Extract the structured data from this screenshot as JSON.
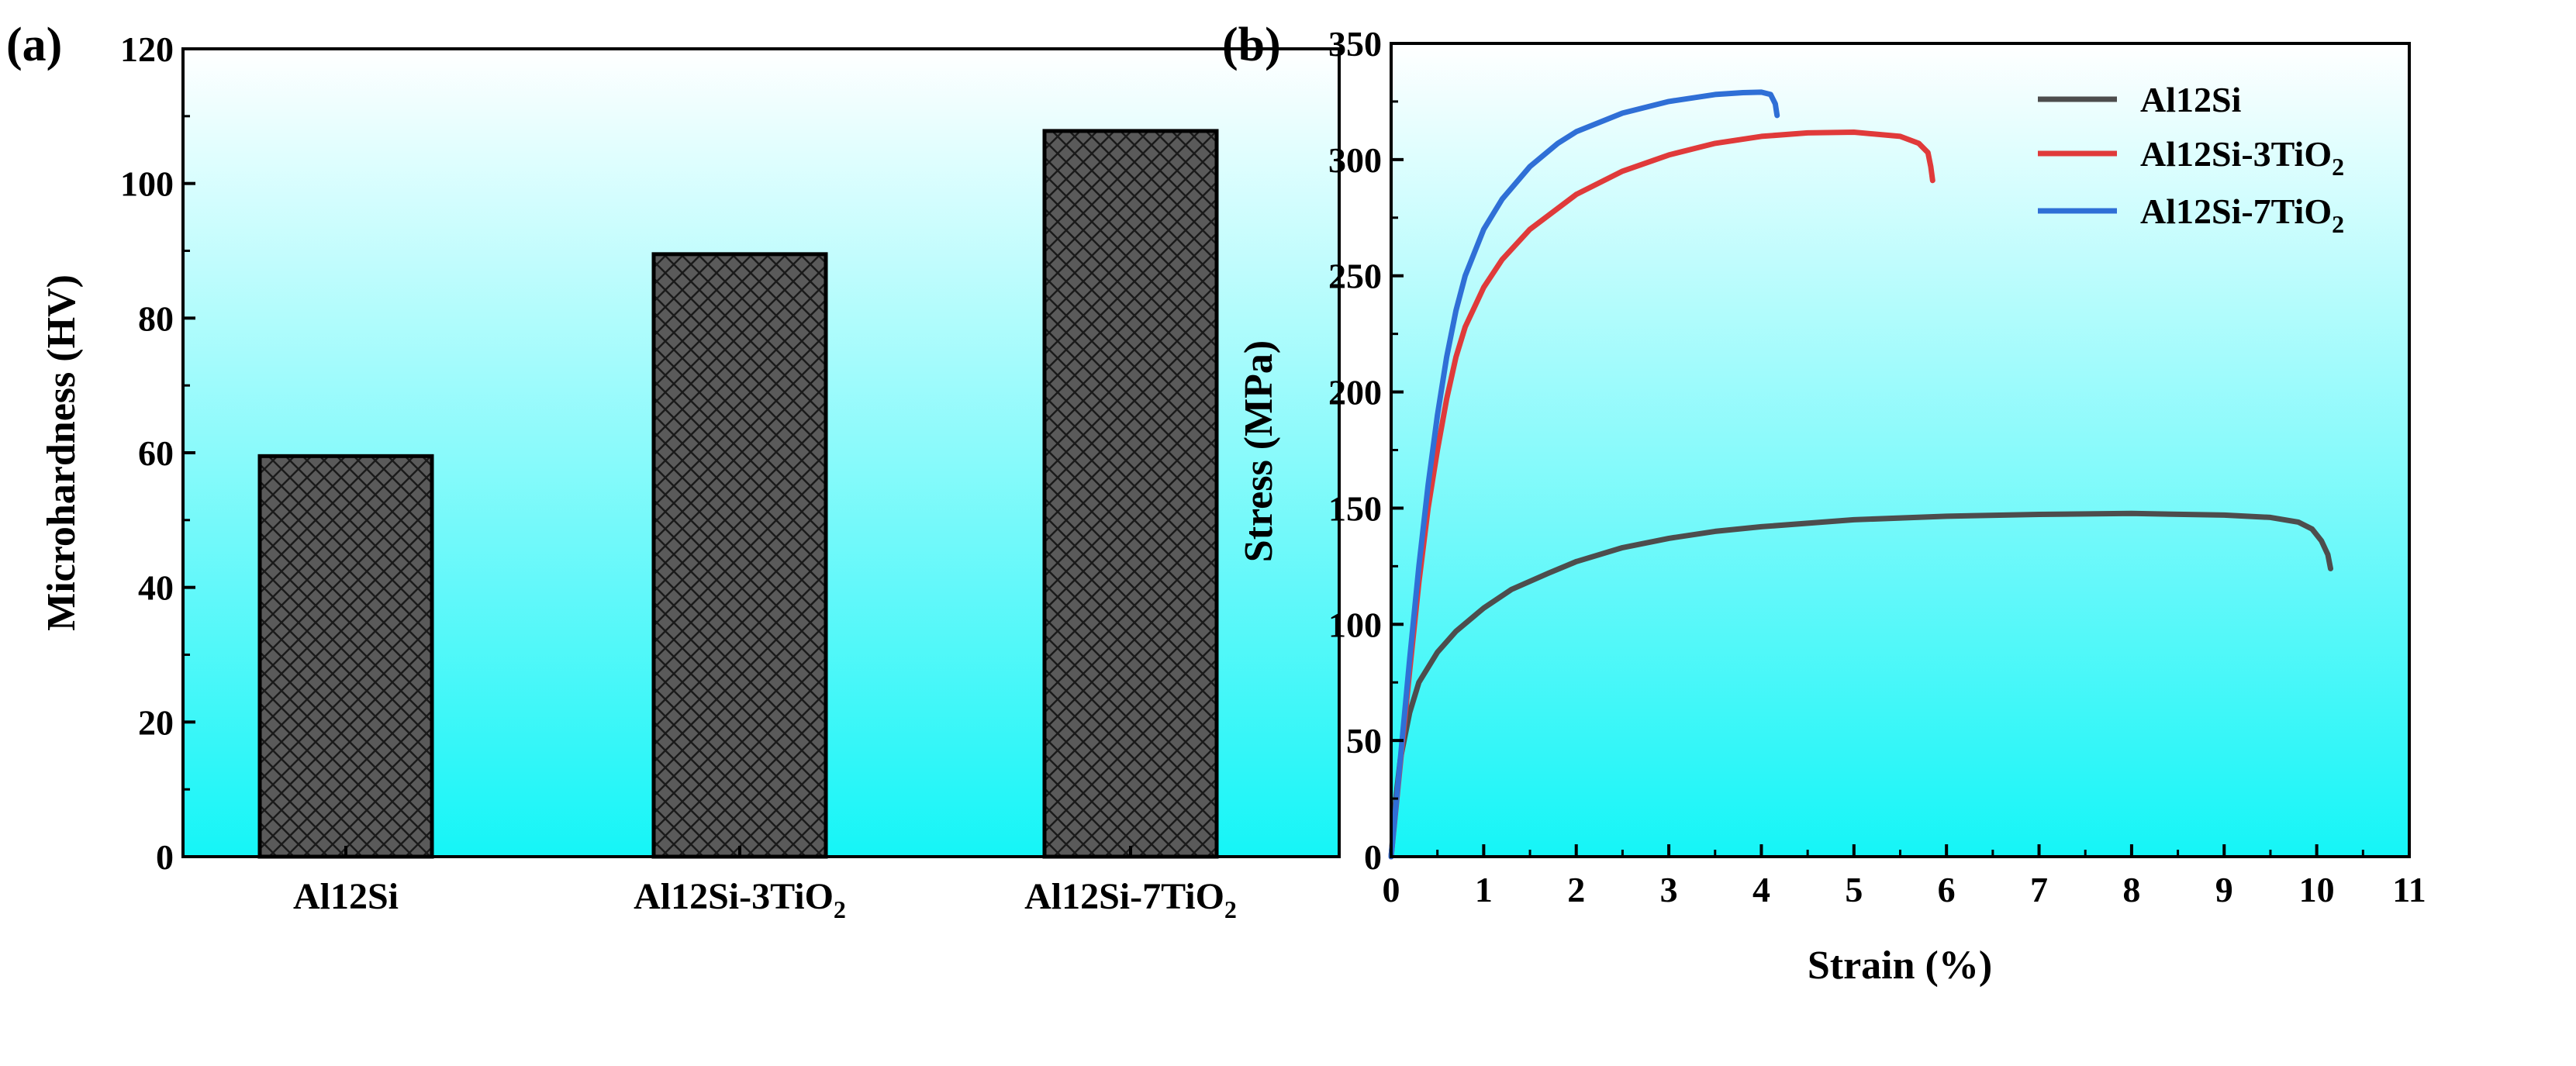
{
  "chart_data": [
    {
      "panel_label": "(a)",
      "type": "bar",
      "categories": [
        "Al12Si",
        "Al12Si-3TiO2",
        "Al12Si-7TiO2"
      ],
      "category_labels": [
        {
          "base": "Al12Si",
          "sub": ""
        },
        {
          "base": "Al12Si-3TiO",
          "sub": "2"
        },
        {
          "base": "Al12Si-7TiO",
          "sub": "2"
        }
      ],
      "values": [
        59.5,
        89.5,
        107.8
      ],
      "title": "",
      "xlabel": "",
      "ylabel": "Microhardness (HV)",
      "ylim": [
        0,
        120
      ],
      "yticks": [
        0,
        20,
        40,
        60,
        80,
        100,
        120
      ],
      "bar_fill": "#5a5a5a",
      "bar_pattern": "crosshatch",
      "grid": false
    },
    {
      "panel_label": "(b)",
      "type": "line",
      "title": "",
      "xlabel": "Strain (%)",
      "ylabel": "Stress (MPa)",
      "xlim": [
        0,
        11
      ],
      "ylim": [
        0,
        350
      ],
      "xticks": [
        0,
        1,
        2,
        3,
        4,
        5,
        6,
        7,
        8,
        9,
        10,
        11
      ],
      "yticks": [
        0,
        50,
        100,
        150,
        200,
        250,
        300,
        350
      ],
      "legend_position": "top-right",
      "grid": false,
      "series": [
        {
          "name": "Al12Si",
          "legend": {
            "base": "Al12Si",
            "sub": ""
          },
          "color": "#4d4d4d",
          "x": [
            0,
            0.05,
            0.1,
            0.2,
            0.3,
            0.5,
            0.7,
            1.0,
            1.3,
            1.7,
            2.0,
            2.5,
            3.0,
            3.5,
            4.0,
            5.0,
            6.0,
            7.0,
            8.0,
            9.0,
            9.5,
            9.8,
            9.95,
            10.05,
            10.12,
            10.15
          ],
          "y": [
            0,
            25,
            42,
            62,
            75,
            88,
            97,
            107,
            115,
            122,
            127,
            133,
            137,
            140,
            142,
            145,
            146.5,
            147.3,
            147.7,
            147,
            146,
            144,
            141,
            136,
            130,
            124
          ]
        },
        {
          "name": "Al12Si-3TiO2",
          "legend": {
            "base": "Al12Si-3TiO",
            "sub": "2"
          },
          "color": "#e03a3a",
          "x": [
            0,
            0.1,
            0.2,
            0.3,
            0.4,
            0.5,
            0.6,
            0.7,
            0.8,
            1.0,
            1.2,
            1.5,
            2.0,
            2.5,
            3.0,
            3.5,
            4.0,
            4.5,
            5.0,
            5.5,
            5.7,
            5.8,
            5.83,
            5.85
          ],
          "y": [
            0,
            40,
            80,
            118,
            150,
            175,
            197,
            215,
            228,
            245,
            257,
            270,
            285,
            295,
            302,
            307,
            310,
            311.5,
            311.8,
            310,
            307,
            303,
            297,
            291
          ]
        },
        {
          "name": "Al12Si-7TiO2",
          "legend": {
            "base": "Al12Si-7TiO",
            "sub": "2"
          },
          "color": "#2f6fd6",
          "x": [
            0,
            0.1,
            0.2,
            0.3,
            0.4,
            0.5,
            0.6,
            0.7,
            0.8,
            1.0,
            1.2,
            1.5,
            1.8,
            2.0,
            2.5,
            3.0,
            3.5,
            3.8,
            4.0,
            4.1,
            4.15,
            4.17
          ],
          "y": [
            0,
            42,
            85,
            125,
            160,
            190,
            215,
            235,
            250,
            270,
            283,
            297,
            307,
            312,
            320,
            325,
            328,
            328.8,
            329,
            328,
            324,
            319
          ]
        }
      ]
    }
  ]
}
